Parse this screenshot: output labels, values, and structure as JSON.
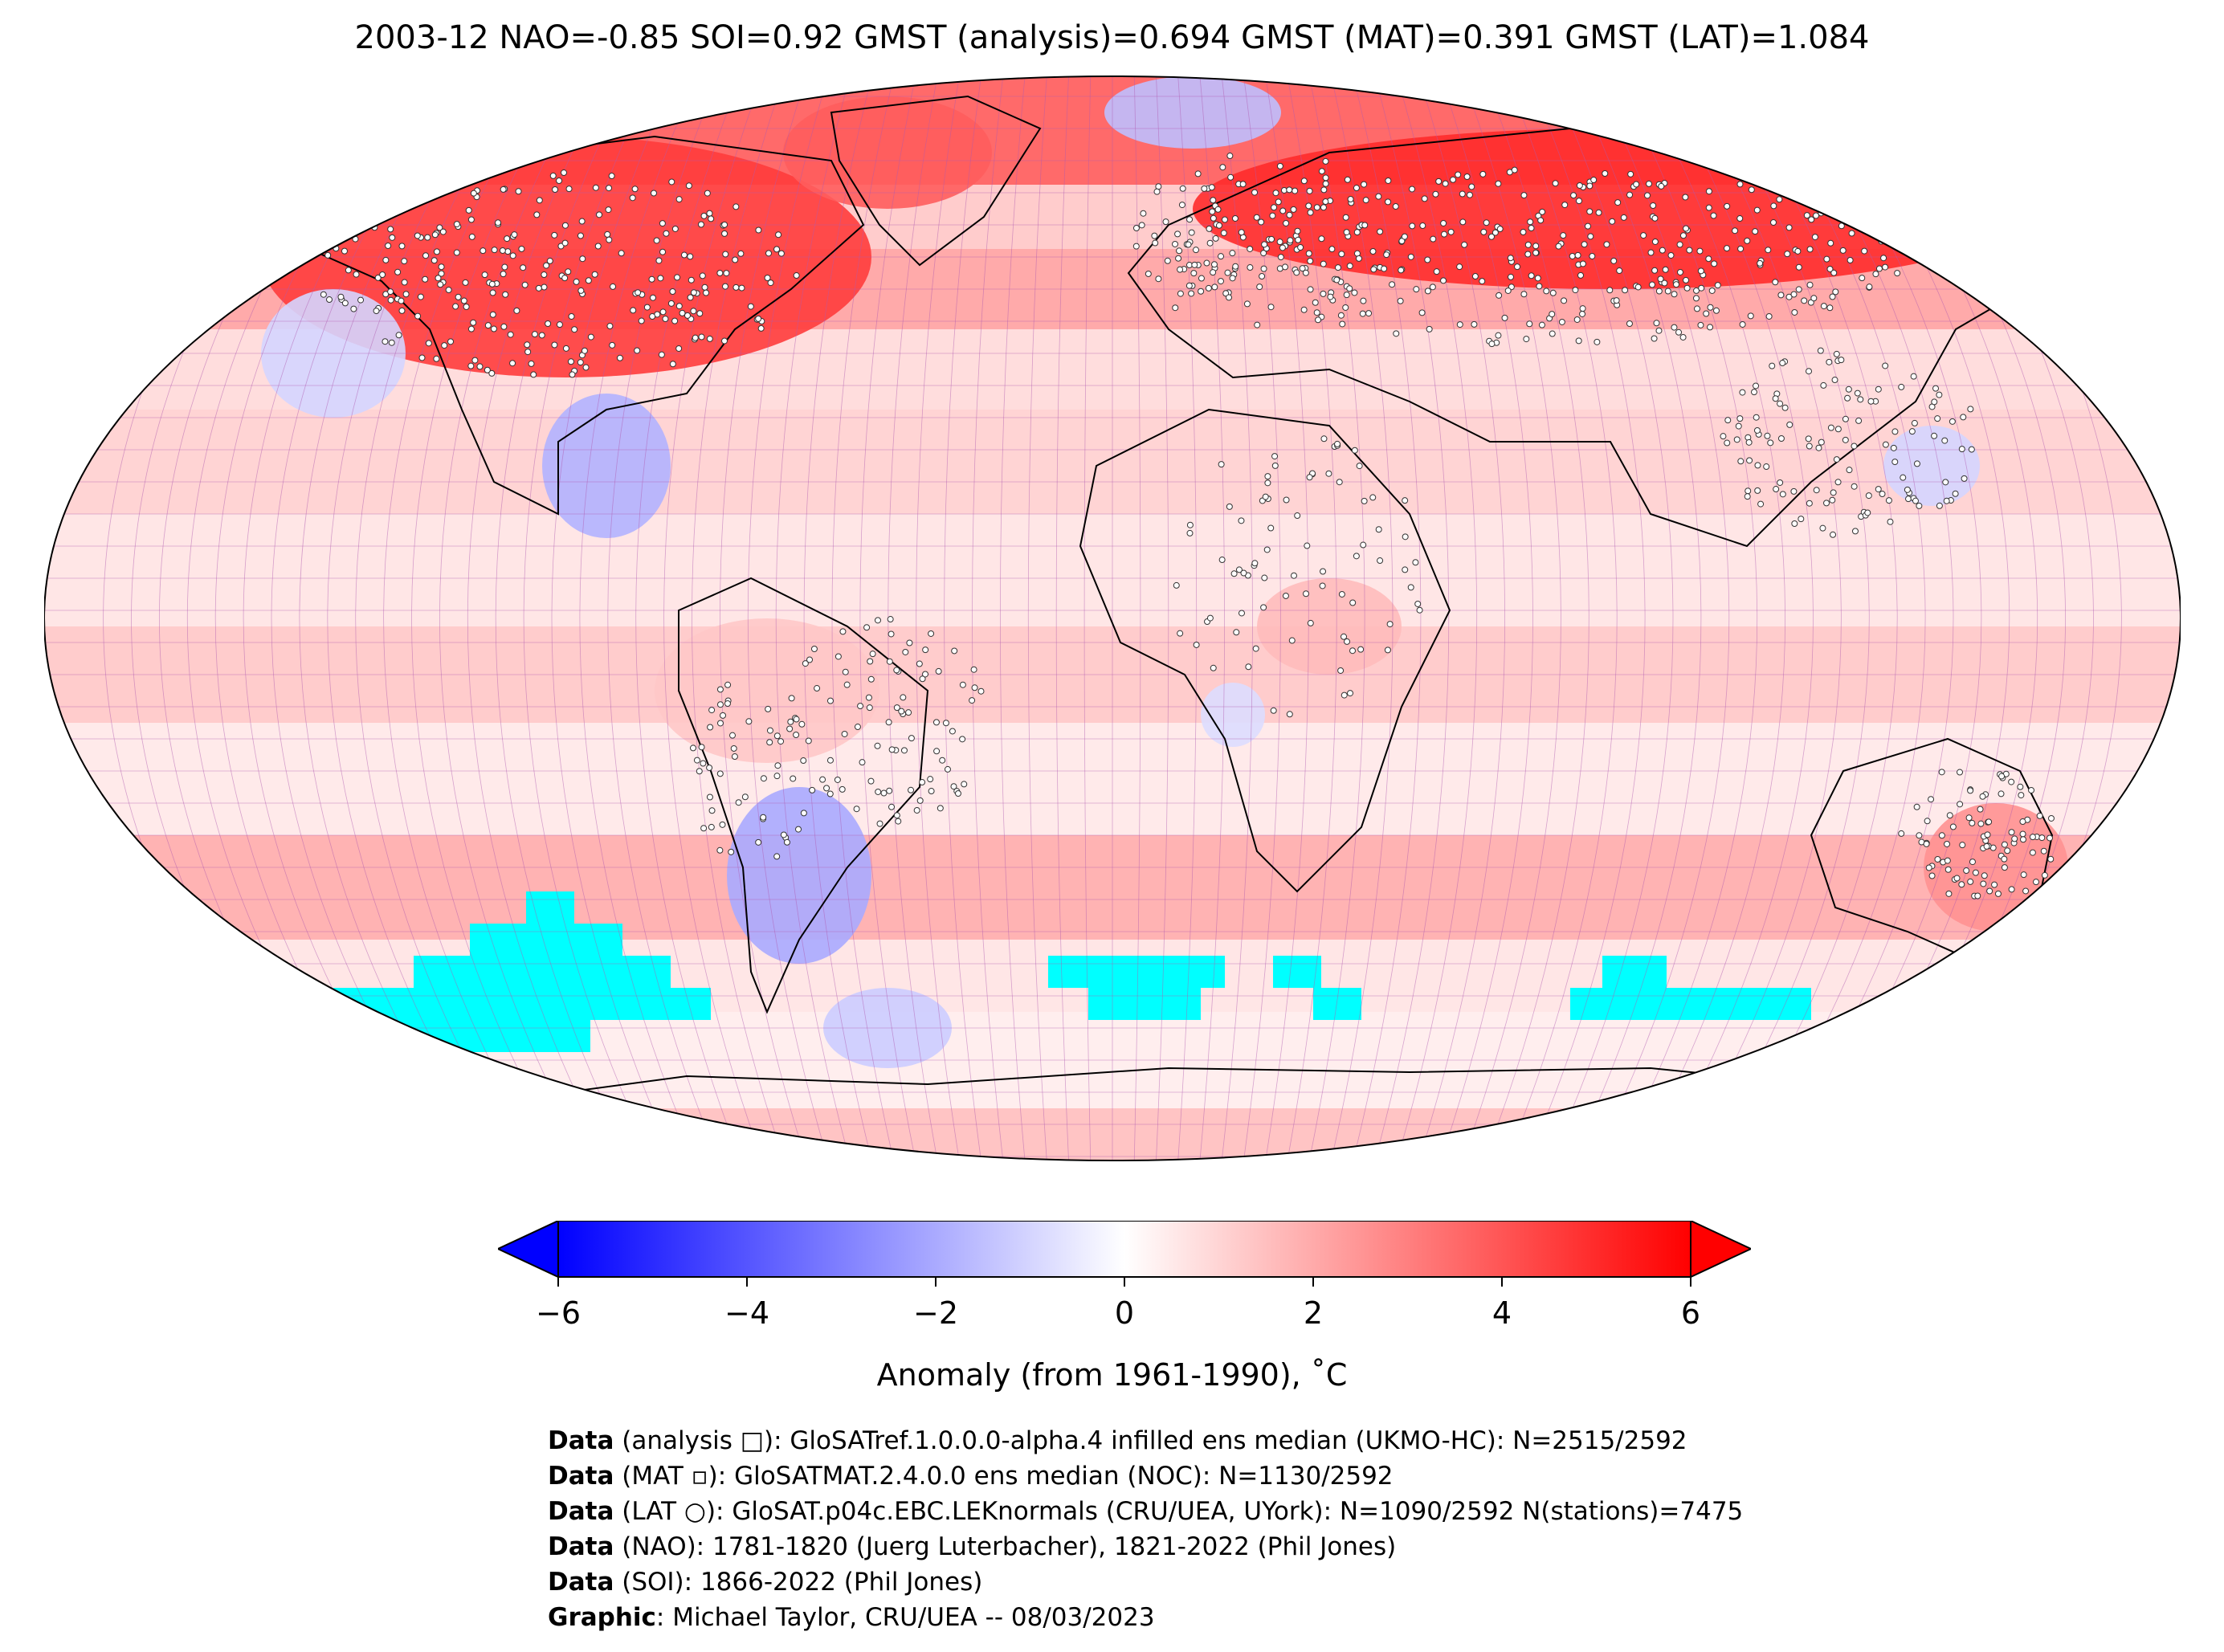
{
  "title": "2003-12 NAO=-0.85 SOI=0.92 GMST (analysis)=0.694 GMST (MAT)=0.391 GMST (LAT)=1.084",
  "map": {
    "projection": "Robinson",
    "grid": "5x5 degree",
    "land_outline_color": "#000000",
    "grid_color": "#b05ab0",
    "missing_color": "#00ffff",
    "regions": [
      {
        "name": "North America / Canada",
        "anomaly": 4.5
      },
      {
        "name": "Greenland",
        "anomaly": 4.0
      },
      {
        "name": "Northern Eurasia / Siberia",
        "anomaly": 5.0
      },
      {
        "name": "Arctic Ocean north of Greenland",
        "anomaly": -1.5
      },
      {
        "name": "Southeast USA / Gulf of Mexico",
        "anomaly": -1.5
      },
      {
        "name": "Southern South America",
        "anomaly": -2.0
      },
      {
        "name": "Eastern Australia",
        "anomaly": 2.5
      },
      {
        "name": "Central Africa",
        "anomaly": 1.5
      },
      {
        "name": "Global oceans",
        "anomaly": 0.8
      }
    ]
  },
  "colorbar": {
    "cmap": [
      "#0000ff",
      "#ffffff",
      "#ff0000"
    ],
    "vmin": -6,
    "vmax": 6,
    "extend": "both",
    "ticks": [
      "−6",
      "−4",
      "−2",
      "0",
      "2",
      "4",
      "6"
    ],
    "tick_values": [
      -6,
      -4,
      -2,
      0,
      2,
      4,
      6
    ],
    "label": "Anomaly (from 1961-1990), ˚C"
  },
  "credits": [
    {
      "bold": "Data",
      "text": " (analysis □): GloSATref.1.0.0.0-alpha.4 infilled ens median (UKMO-HC): N=2515/2592"
    },
    {
      "bold": "Data",
      "text": " (MAT ▫): GloSATMAT.2.4.0.0 ens median (NOC): N=1130/2592"
    },
    {
      "bold": "Data",
      "text": " (LAT ○): GloSAT.p04c.EBC.LEKnormals (CRU/UEA, UYork): N=1090/2592 N(stations)=7475"
    },
    {
      "bold": "Data",
      "text": " (NAO): 1781-1820 (Juerg Luterbacher), 1821-2022 (Phil Jones)"
    },
    {
      "bold": "Data",
      "text": " (SOI): 1866-2022 (Phil Jones)"
    },
    {
      "bold": "Graphic",
      "text": ": Michael Taylor, CRU/UEA -- 08/03/2023"
    }
  ]
}
